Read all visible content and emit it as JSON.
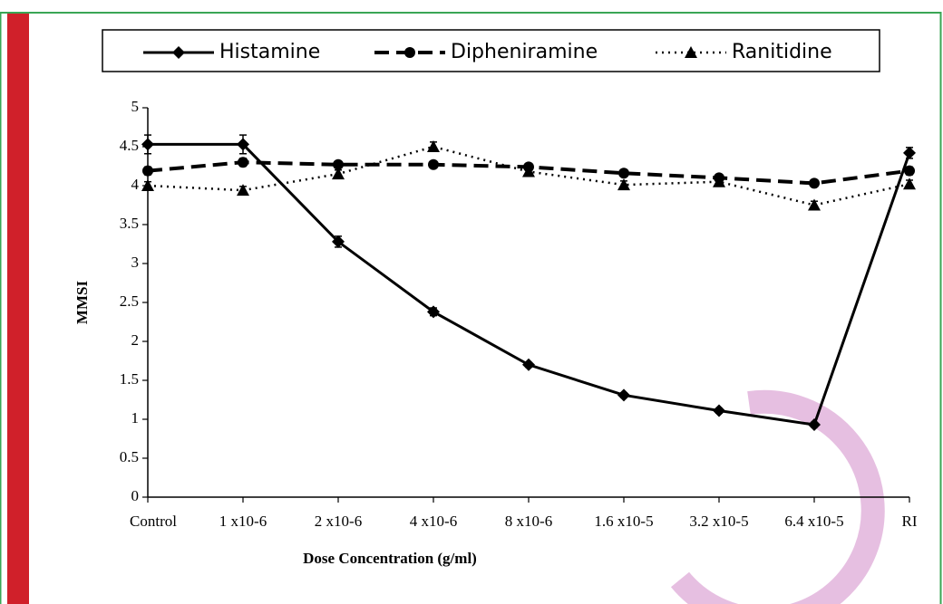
{
  "chart_data": {
    "type": "line",
    "xlabel": "Dose Concentration (g/ml)",
    "ylabel": "MMSI",
    "categories": [
      "Control",
      "1 x10-6",
      "2 x10-6",
      "4 x10-6",
      "8 x10-6",
      "1.6 x10-5",
      "3.2 x10-5",
      "6.4 x10-5",
      "RI"
    ],
    "ylim": [
      0,
      5
    ],
    "yticks": [
      0,
      0.5,
      1,
      1.5,
      2,
      2.5,
      3,
      3.5,
      4,
      4.5,
      5
    ],
    "legend": "top",
    "series": [
      {
        "name": "Histamine",
        "color": "#000000",
        "line_style": "solid",
        "marker": "diamond",
        "values": [
          4.53,
          4.53,
          3.28,
          2.38,
          1.7,
          1.31,
          1.11,
          0.93,
          4.42
        ],
        "errors": [
          0.12,
          0.12,
          0.07,
          0.05,
          0.03,
          0.03,
          0.03,
          0.03,
          0.07
        ]
      },
      {
        "name": "Dipheniramine",
        "color": "#000000",
        "line_style": "dashed",
        "marker": "circle",
        "values": [
          4.19,
          4.3,
          4.27,
          4.27,
          4.24,
          4.16,
          4.1,
          4.03,
          4.19
        ],
        "errors": [
          0.05,
          0.05,
          0.04,
          0.04,
          0.04,
          0.04,
          0.04,
          0.04,
          0.05
        ]
      },
      {
        "name": "Ranitidine",
        "color": "#000000",
        "line_style": "dotted",
        "marker": "triangle",
        "values": [
          4.0,
          3.94,
          4.15,
          4.5,
          4.18,
          4.01,
          4.05,
          3.75,
          4.02
        ],
        "errors": [
          0.05,
          0.05,
          0.05,
          0.06,
          0.05,
          0.05,
          0.05,
          0.05,
          0.05
        ]
      }
    ]
  }
}
